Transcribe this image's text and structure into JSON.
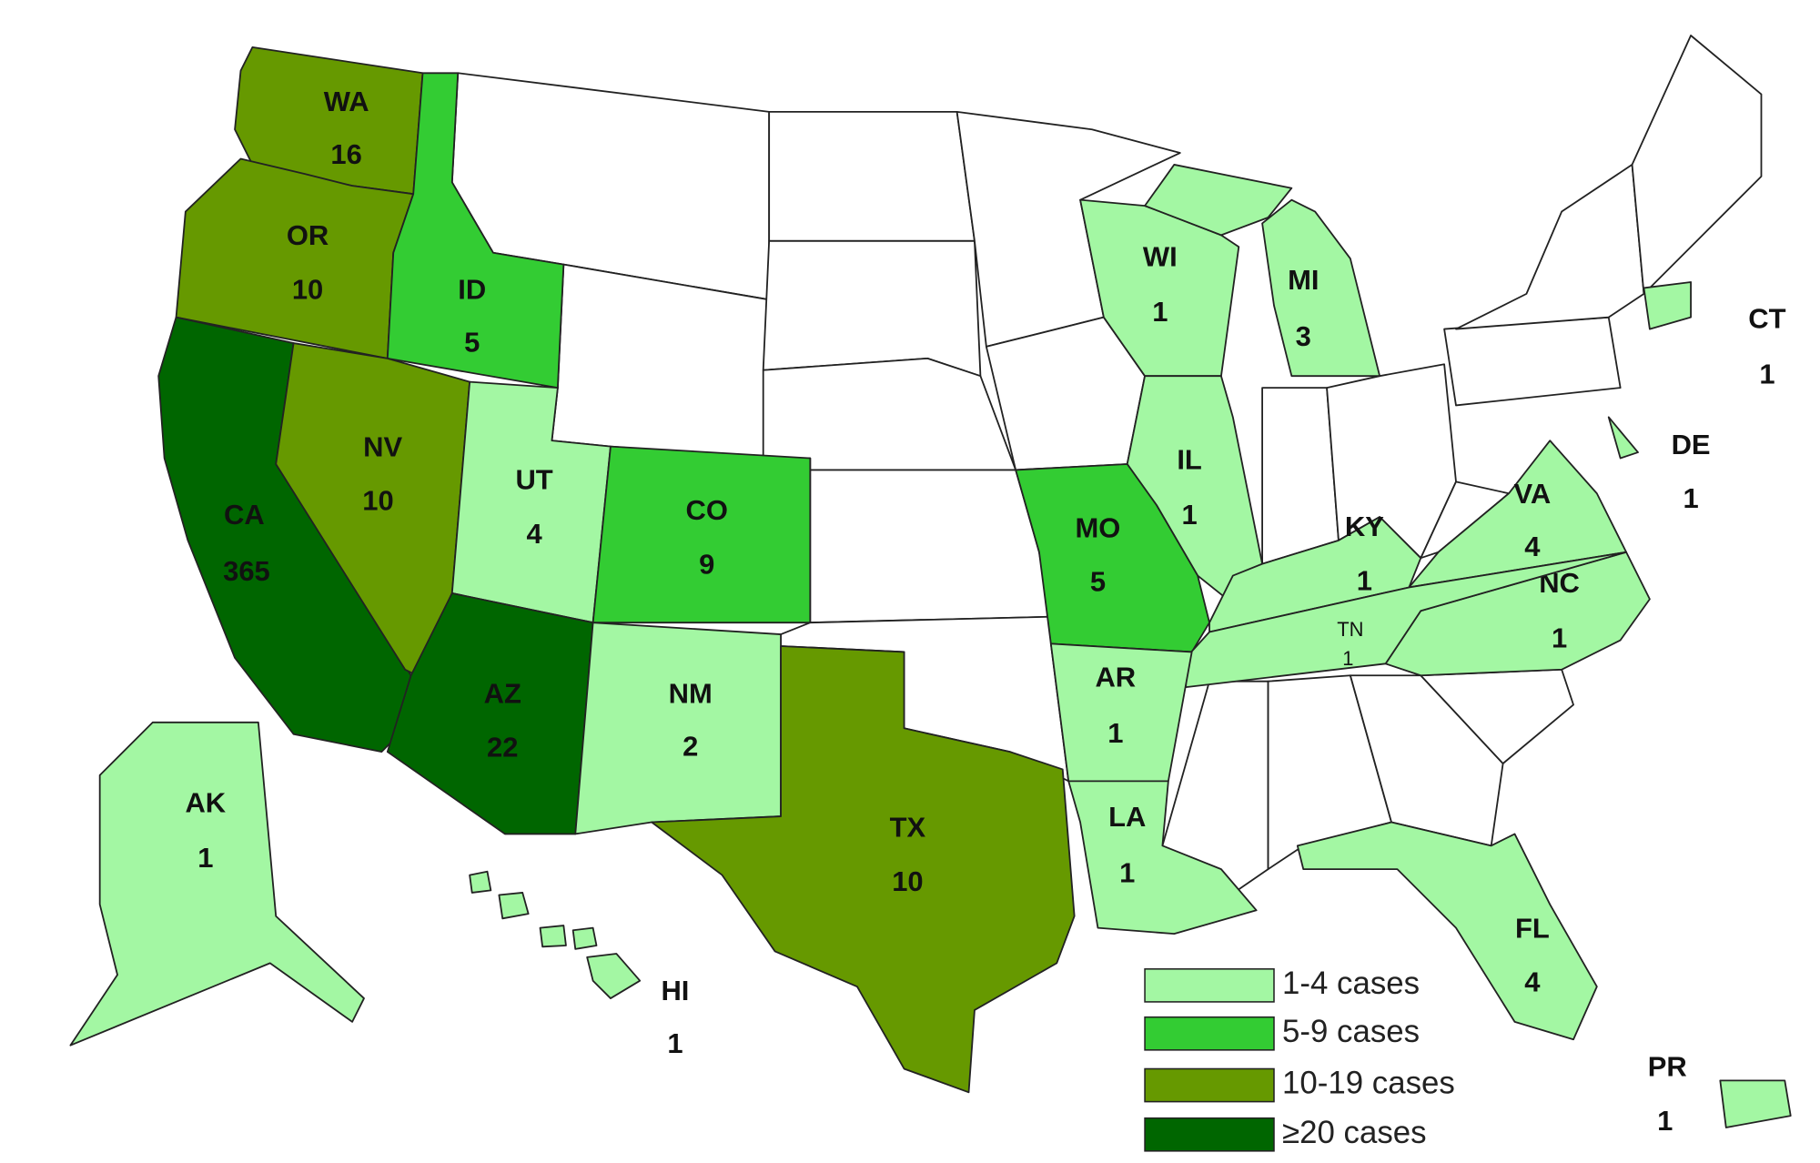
{
  "states": [
    {
      "abbr": "WA",
      "count": 16,
      "color": "#669900"
    },
    {
      "abbr": "OR",
      "count": 10,
      "color": "#669900"
    },
    {
      "abbr": "ID",
      "count": 5,
      "color": "#33cc33"
    },
    {
      "abbr": "CA",
      "count": 365,
      "color": "#006600"
    },
    {
      "abbr": "NV",
      "count": 10,
      "color": "#669900"
    },
    {
      "abbr": "UT",
      "count": 4,
      "color": "#a3f7a3"
    },
    {
      "abbr": "CO",
      "count": 9,
      "color": "#33cc33"
    },
    {
      "abbr": "AZ",
      "count": 22,
      "color": "#006600"
    },
    {
      "abbr": "NM",
      "count": 2,
      "color": "#a3f7a3"
    },
    {
      "abbr": "TX",
      "count": 10,
      "color": "#669900"
    },
    {
      "abbr": "AK",
      "count": 1,
      "color": "#a3f7a3"
    },
    {
      "abbr": "HI",
      "count": 1,
      "color": "#a3f7a3"
    },
    {
      "abbr": "WI",
      "count": 1,
      "color": "#a3f7a3"
    },
    {
      "abbr": "MI",
      "count": 3,
      "color": "#a3f7a3"
    },
    {
      "abbr": "IL",
      "count": 1,
      "color": "#a3f7a3"
    },
    {
      "abbr": "MO",
      "count": 5,
      "color": "#33cc33"
    },
    {
      "abbr": "KY",
      "count": 1,
      "color": "#a3f7a3"
    },
    {
      "abbr": "VA",
      "count": 4,
      "color": "#a3f7a3"
    },
    {
      "abbr": "NC",
      "count": 1,
      "color": "#a3f7a3"
    },
    {
      "abbr": "TN",
      "count": 1,
      "color": "#a3f7a3"
    },
    {
      "abbr": "AR",
      "count": 1,
      "color": "#a3f7a3"
    },
    {
      "abbr": "LA",
      "count": 1,
      "color": "#a3f7a3"
    },
    {
      "abbr": "FL",
      "count": 4,
      "color": "#a3f7a3"
    },
    {
      "abbr": "CT",
      "count": 1,
      "color": "#a3f7a3"
    },
    {
      "abbr": "DE",
      "count": 1,
      "color": "#a3f7a3"
    },
    {
      "abbr": "PR",
      "count": 1,
      "color": "#a3f7a3"
    }
  ],
  "legend": {
    "items": [
      {
        "label": "1-4 cases",
        "color": "#a3f7a3"
      },
      {
        "label": "5-9 cases",
        "color": "#33cc33"
      },
      {
        "label": "10-19 cases",
        "color": "#669900"
      },
      {
        "label": "≥20 cases",
        "color": "#006600"
      }
    ]
  }
}
